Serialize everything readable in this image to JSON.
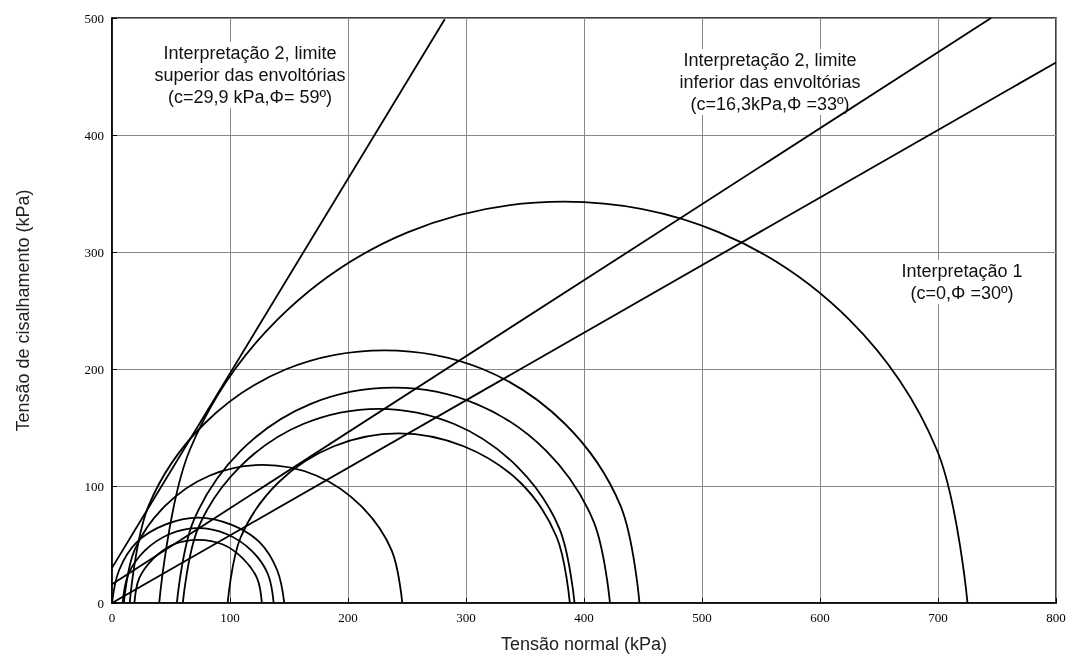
{
  "chart_data": {
    "type": "line",
    "xlabel": "Tensão normal (kPa)",
    "ylabel": "Tensão de cisalhamento (kPa)",
    "xlim": [
      0,
      800
    ],
    "xticks": [
      0,
      100,
      200,
      300,
      400,
      500,
      600,
      700,
      800
    ],
    "ylim": [
      0,
      500
    ],
    "yticks": [
      0,
      100,
      200,
      300,
      400,
      500
    ],
    "grid": true,
    "marker": "none",
    "line_style": "solid",
    "annotations": [
      "Interpretação 2, limite\nsuperior das envoltórias\n(c=29,9 kPa,Φ= 59º)",
      "Interpretação 2, limite\ninferior das envoltórias\n(c=16,3kPa,Φ =33º)",
      "Interpretação 1\n(c=0,Φ =30º)"
    ],
    "series": [
      {
        "color": "#000000",
        "x": [
          40,
          66,
          140,
          251,
          383,
          514,
          625,
          699,
          725
        ],
        "values": [
          0,
          131,
          242,
          317,
          343,
          317,
          242,
          131,
          0
        ]
      },
      {
        "color": "#000000",
        "x": [
          15,
          31,
          78,
          148,
          231,
          314,
          384,
          431,
          447
        ],
        "values": [
          0,
          83,
          153,
          200,
          216,
          200,
          153,
          83,
          0
        ]
      },
      {
        "color": "#000000",
        "x": [
          55,
          69,
          109,
          168,
          239,
          309,
          368,
          408,
          422
        ],
        "values": [
          0,
          70,
          130,
          170,
          184,
          170,
          130,
          70,
          0
        ]
      },
      {
        "color": "#000000",
        "x": [
          60,
          73,
          109,
          162,
          226,
          290,
          343,
          379,
          392
        ],
        "values": [
          0,
          64,
          117,
          153,
          166,
          153,
          117,
          64,
          0
        ]
      },
      {
        "color": "#000000",
        "x": [
          98,
          109,
          141,
          188,
          243,
          298,
          346,
          377,
          388
        ],
        "values": [
          0,
          56,
          103,
          134,
          145,
          134,
          103,
          56,
          0
        ]
      },
      {
        "color": "#000000",
        "x": [
          10,
          19,
          45,
          83,
          128,
          173,
          211,
          237,
          246
        ],
        "values": [
          0,
          45,
          83,
          109,
          118,
          109,
          83,
          45,
          0
        ]
      },
      {
        "color": "#000000",
        "x": [
          0,
          6,
          21,
          45,
          73,
          101,
          125,
          140,
          146
        ],
        "values": [
          0,
          28,
          52,
          67,
          73,
          67,
          52,
          28,
          0
        ]
      },
      {
        "color": "#000000",
        "x": [
          9,
          14,
          28,
          49,
          73,
          97,
          118,
          132,
          137
        ],
        "values": [
          0,
          25,
          45,
          59,
          64,
          59,
          45,
          25,
          0
        ]
      },
      {
        "color": "#000000",
        "x": [
          19,
          23,
          35,
          52,
          73,
          94,
          111,
          123,
          127
        ],
        "values": [
          0,
          21,
          38,
          50,
          54,
          50,
          38,
          21,
          0
        ]
      },
      {
        "color": "#000000",
        "x": [
          0,
          800
        ],
        "values": [
          0,
          462
        ]
      },
      {
        "color": "#000000",
        "x": [
          0,
          745
        ],
        "values": [
          16,
          500
        ]
      },
      {
        "color": "#000000",
        "x": [
          0,
          282
        ],
        "values": [
          30,
          499
        ]
      }
    ]
  }
}
